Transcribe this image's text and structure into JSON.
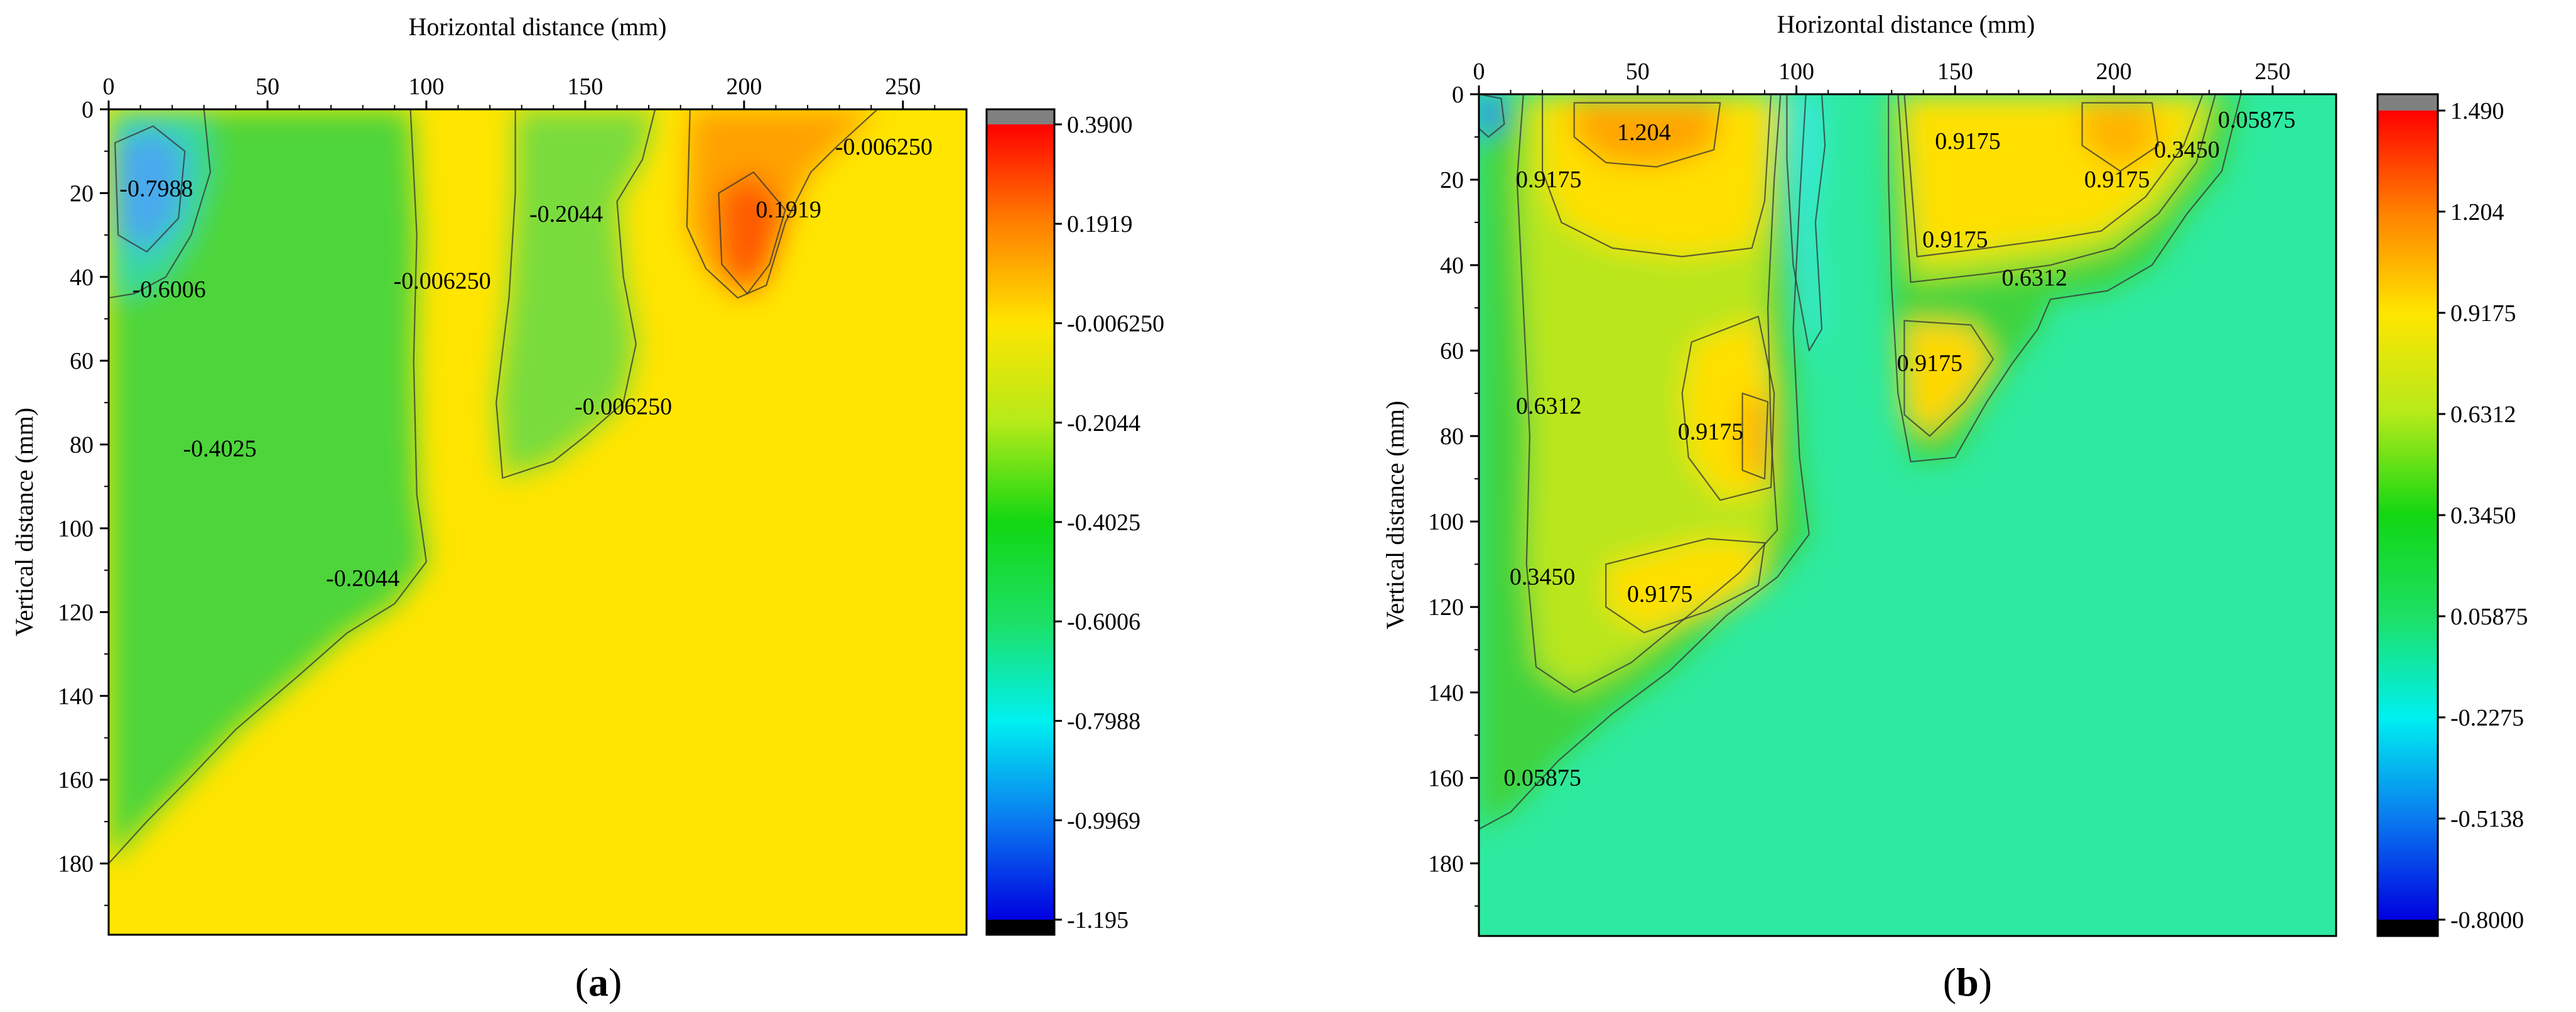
{
  "chart_data": [
    {
      "type": "heatmap",
      "panel_label": "(a)",
      "panel_letter": "a",
      "xlabel": "Horizontal distance (mm)",
      "ylabel": "Vertical distance (mm)",
      "xlim": [
        0,
        270
      ],
      "ylim": [
        0,
        197
      ],
      "x_ticks": [
        0,
        50,
        100,
        150,
        200,
        250
      ],
      "y_ticks": [
        0,
        20,
        40,
        60,
        80,
        100,
        120,
        140,
        160,
        180
      ],
      "y_inverted": true,
      "x_axis_position": "top",
      "colorbar": {
        "min": -1.195,
        "max": 0.39,
        "labels": [
          "0.3900",
          "0.1919",
          "-0.006250",
          "-0.2044",
          "-0.4025",
          "-0.6006",
          "-0.7988",
          "-0.9969",
          "-1.195"
        ],
        "label_values": [
          0.39,
          0.1919,
          -0.00625,
          -0.2044,
          -0.4025,
          -0.6006,
          -0.7988,
          -0.9969,
          -1.195
        ],
        "gradient": [
          "#ff0000",
          "#ff8000",
          "#ffe500",
          "#b5ea1a",
          "#12d712",
          "#1de065",
          "#00f0f0",
          "#0a7af0",
          "#0000e0"
        ],
        "cap_top_color": "#808080",
        "cap_bottom_color": "#000000"
      },
      "background_color": "#ffe500",
      "regions": [
        {
          "name": "green-zone-left",
          "level": -0.4025,
          "color": "#4ed53a",
          "points": [
            [
              0,
              0
            ],
            [
              95,
              0
            ],
            [
              97,
              30
            ],
            [
              96,
              60
            ],
            [
              97,
              92
            ],
            [
              100,
              108
            ],
            [
              90,
              118
            ],
            [
              75,
              125
            ],
            [
              60,
              135
            ],
            [
              40,
              148
            ],
            [
              25,
              160
            ],
            [
              12,
              170
            ],
            [
              0,
              180
            ]
          ]
        },
        {
          "name": "green-zone-middle",
          "level": -0.2044,
          "color": "#79dc3c",
          "points": [
            [
              128,
              0
            ],
            [
              172,
              0
            ],
            [
              168,
              12
            ],
            [
              160,
              22
            ],
            [
              162,
              40
            ],
            [
              166,
              56
            ],
            [
              162,
              70
            ],
            [
              150,
              78
            ],
            [
              140,
              84
            ],
            [
              124,
              88
            ],
            [
              122,
              70
            ],
            [
              126,
              45
            ],
            [
              128,
              20
            ]
          ]
        },
        {
          "name": "orange-zone-right",
          "level": 0.1919,
          "color": "#ffa100",
          "points": [
            [
              183,
              0
            ],
            [
              242,
              0
            ],
            [
              229,
              9
            ],
            [
              221,
              15
            ],
            [
              213,
              27
            ],
            [
              207,
              42
            ],
            [
              198,
              45
            ],
            [
              188,
              38
            ],
            [
              182,
              28
            ]
          ]
        },
        {
          "name": "red-core-right",
          "level": 0.39,
          "color": "#ff5a00",
          "points": [
            [
              192,
              20
            ],
            [
              203,
              15
            ],
            [
              213,
              24
            ],
            [
              208,
              37
            ],
            [
              201,
              44
            ],
            [
              193,
              37
            ]
          ]
        },
        {
          "name": "cyan-zone-topleft",
          "level": -0.6006,
          "color": "#35d9a3",
          "points": [
            [
              0,
              0
            ],
            [
              30,
              0
            ],
            [
              32,
              15
            ],
            [
              26,
              30
            ],
            [
              18,
              40
            ],
            [
              8,
              44
            ],
            [
              0,
              45
            ]
          ]
        },
        {
          "name": "blue-core-topleft",
          "level": -0.7988,
          "color": "#4aa9ee",
          "points": [
            [
              2,
              8
            ],
            [
              14,
              4
            ],
            [
              24,
              10
            ],
            [
              22,
              26
            ],
            [
              12,
              34
            ],
            [
              3,
              30
            ]
          ]
        }
      ],
      "contour_labels": [
        {
          "text": "-0.7988",
          "x": 15,
          "y": 19
        },
        {
          "text": "-0.6006",
          "x": 19,
          "y": 43
        },
        {
          "text": "-0.006250",
          "x": 105,
          "y": 41
        },
        {
          "text": "-0.4025",
          "x": 35,
          "y": 81
        },
        {
          "text": "-0.2044",
          "x": 80,
          "y": 112
        },
        {
          "text": "-0.2044",
          "x": 144,
          "y": 25
        },
        {
          "text": "0.1919",
          "x": 214,
          "y": 24
        },
        {
          "text": "-0.006250",
          "x": 162,
          "y": 71
        },
        {
          "text": "-0.006250",
          "x": 244,
          "y": 9
        }
      ]
    },
    {
      "type": "heatmap",
      "panel_label": "(b)",
      "panel_letter": "b",
      "xlabel": "Horizontal distance (mm)",
      "ylabel": "Vertical distance (mm)",
      "xlim": [
        0,
        270
      ],
      "ylim": [
        0,
        197
      ],
      "x_ticks": [
        0,
        50,
        100,
        150,
        200,
        250
      ],
      "y_ticks": [
        0,
        20,
        40,
        60,
        80,
        100,
        120,
        140,
        160,
        180
      ],
      "y_inverted": true,
      "x_axis_position": "top",
      "colorbar": {
        "min": -0.8,
        "max": 1.49,
        "labels": [
          "1.490",
          "1.204",
          "0.9175",
          "0.6312",
          "0.3450",
          "0.05875",
          "-0.2275",
          "-0.5138",
          "-0.8000"
        ],
        "label_values": [
          1.49,
          1.204,
          0.9175,
          0.6312,
          0.345,
          0.05875,
          -0.2275,
          -0.5138,
          -0.8
        ],
        "gradient": [
          "#ff0000",
          "#ff8000",
          "#ffe500",
          "#b5ea1a",
          "#12d712",
          "#1de065",
          "#00f0f0",
          "#0a7af0",
          "#0000e0"
        ],
        "cap_top_color": "#808080",
        "cap_bottom_color": "#000000"
      },
      "background_color": "#2eeaa0",
      "regions": [
        {
          "name": "green-zone-left",
          "level": 0.345,
          "color": "#3fd33c",
          "points": [
            [
              0,
              0
            ],
            [
              103,
              0
            ],
            [
              101,
              25
            ],
            [
              99,
              55
            ],
            [
              101,
              85
            ],
            [
              104,
              103
            ],
            [
              94,
              113
            ],
            [
              78,
              122
            ],
            [
              60,
              135
            ],
            [
              42,
              145
            ],
            [
              25,
              156
            ],
            [
              10,
              168
            ],
            [
              0,
              172
            ]
          ]
        },
        {
          "name": "green-zone-right",
          "level": 0.345,
          "color": "#3fd33c",
          "points": [
            [
              129,
              0
            ],
            [
              240,
              0
            ],
            [
              234,
              18
            ],
            [
              223,
              28
            ],
            [
              212,
              40
            ],
            [
              198,
              46
            ],
            [
              180,
              48
            ],
            [
              176,
              55
            ],
            [
              168,
              63
            ],
            [
              160,
              72
            ],
            [
              150,
              85
            ],
            [
              136,
              86
            ],
            [
              132,
              70
            ],
            [
              130,
              45
            ],
            [
              129,
              20
            ]
          ]
        },
        {
          "name": "lime-zone-left",
          "level": 0.6312,
          "color": "#b9e61c",
          "points": [
            [
              14,
              0
            ],
            [
              95,
              0
            ],
            [
              93,
              20
            ],
            [
              91,
              50
            ],
            [
              92,
              80
            ],
            [
              94,
              102
            ],
            [
              82,
              112
            ],
            [
              66,
              122
            ],
            [
              48,
              133
            ],
            [
              30,
              140
            ],
            [
              18,
              134
            ],
            [
              15,
              110
            ],
            [
              16,
              80
            ],
            [
              14,
              50
            ],
            [
              12,
              20
            ]
          ]
        },
        {
          "name": "yellow-zone-left-top",
          "level": 0.9175,
          "color": "#ffe000",
          "points": [
            [
              20,
              0
            ],
            [
              92,
              0
            ],
            [
              90,
              25
            ],
            [
              86,
              36
            ],
            [
              64,
              38
            ],
            [
              42,
              36
            ],
            [
              26,
              30
            ],
            [
              20,
              18
            ]
          ]
        },
        {
          "name": "yellow-zone-left-mid",
          "level": 0.9175,
          "color": "#ffe000",
          "points": [
            [
              67,
              58
            ],
            [
              88,
              52
            ],
            [
              93,
              70
            ],
            [
              92,
              92
            ],
            [
              76,
              95
            ],
            [
              66,
              85
            ],
            [
              64,
              70
            ]
          ]
        },
        {
          "name": "yellow-zone-left-low",
          "level": 0.9175,
          "color": "#ffe000",
          "points": [
            [
              40,
              110
            ],
            [
              72,
              104
            ],
            [
              90,
              105
            ],
            [
              88,
              115
            ],
            [
              72,
              121
            ],
            [
              52,
              126
            ],
            [
              40,
              120
            ]
          ]
        },
        {
          "name": "lime-zone-right",
          "level": 0.6312,
          "color": "#b9e61c",
          "points": [
            [
              132,
              0
            ],
            [
              232,
              0
            ],
            [
              226,
              16
            ],
            [
              214,
              28
            ],
            [
              200,
              36
            ],
            [
              180,
              40
            ],
            [
              160,
              42
            ],
            [
              136,
              44
            ]
          ]
        },
        {
          "name": "yellow-zone-right-top",
          "level": 0.9175,
          "color": "#ffe000",
          "points": [
            [
              134,
              0
            ],
            [
              228,
              0
            ],
            [
              222,
              12
            ],
            [
              210,
              24
            ],
            [
              196,
              32
            ],
            [
              180,
              34
            ],
            [
              160,
              36
            ],
            [
              138,
              38
            ]
          ]
        },
        {
          "name": "yellow-zone-right-triangle",
          "level": 0.9175,
          "color": "#ffd800",
          "points": [
            [
              134,
              53
            ],
            [
              155,
              54
            ],
            [
              162,
              62
            ],
            [
              153,
              72
            ],
            [
              142,
              80
            ],
            [
              134,
              75
            ]
          ]
        },
        {
          "name": "orange-zone-left",
          "level": 1.204,
          "color": "#ffa500",
          "points": [
            [
              30,
              2
            ],
            [
              76,
              2
            ],
            [
              74,
              13
            ],
            [
              56,
              17
            ],
            [
              40,
              16
            ],
            [
              30,
              10
            ]
          ]
        },
        {
          "name": "orange-zone-right",
          "level": 1.204,
          "color": "#ffb400",
          "points": [
            [
              190,
              2
            ],
            [
              212,
              2
            ],
            [
              214,
              12
            ],
            [
              202,
              18
            ],
            [
              190,
              12
            ]
          ]
        },
        {
          "name": "orange-zone-left-mid",
          "level": 1.204,
          "color": "#ffac00",
          "points": [
            [
              83,
              70
            ],
            [
              91,
              72
            ],
            [
              90,
              90
            ],
            [
              83,
              88
            ]
          ]
        },
        {
          "name": "blue-spot-topleft",
          "level": -0.5138,
          "color": "#2a7cf5",
          "points": [
            [
              0,
              0
            ],
            [
              7,
              1
            ],
            [
              8,
              7
            ],
            [
              3,
              10
            ],
            [
              0,
              8
            ]
          ]
        },
        {
          "name": "cyan-stripe",
          "level": -0.2275,
          "color": "#39e9d8",
          "points": [
            [
              97,
              0
            ],
            [
              108,
              0
            ],
            [
              109,
              12
            ],
            [
              106,
              30
            ],
            [
              108,
              55
            ],
            [
              104,
              60
            ],
            [
              99,
              40
            ],
            [
              97,
              15
            ]
          ]
        }
      ],
      "contour_labels": [
        {
          "text": "1.204",
          "x": 52,
          "y": 9
        },
        {
          "text": "0.9175",
          "x": 22,
          "y": 20
        },
        {
          "text": "0.9175",
          "x": 154,
          "y": 11
        },
        {
          "text": "0.9175",
          "x": 201,
          "y": 20
        },
        {
          "text": "0.05875",
          "x": 245,
          "y": 6
        },
        {
          "text": "0.3450",
          "x": 223,
          "y": 13
        },
        {
          "text": "0.9175",
          "x": 150,
          "y": 34
        },
        {
          "text": "0.6312",
          "x": 175,
          "y": 43
        },
        {
          "text": "0.9175",
          "x": 142,
          "y": 63
        },
        {
          "text": "0.6312",
          "x": 22,
          "y": 73
        },
        {
          "text": "0.9175",
          "x": 73,
          "y": 79
        },
        {
          "text": "0.3450",
          "x": 20,
          "y": 113
        },
        {
          "text": "0.9175",
          "x": 57,
          "y": 117
        },
        {
          "text": "0.05875",
          "x": 20,
          "y": 160
        }
      ]
    }
  ]
}
